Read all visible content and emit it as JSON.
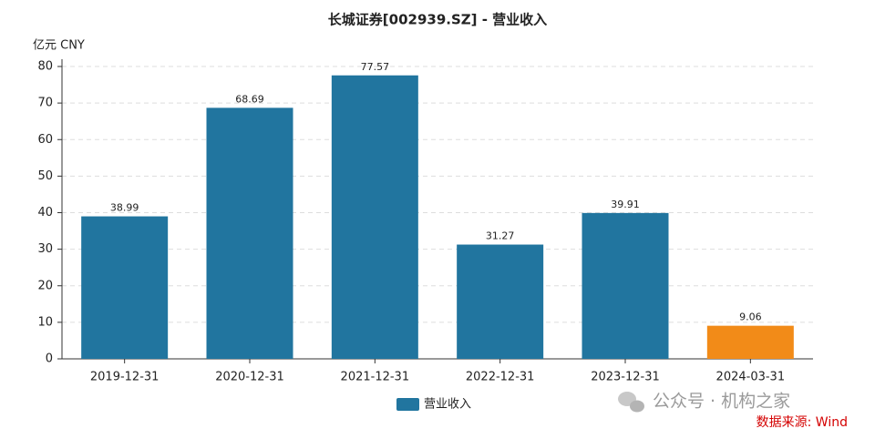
{
  "chart_data": {
    "type": "bar",
    "title": "长城证券[002939.SZ] - 营业收入",
    "y_label": "亿元  CNY",
    "categories": [
      "2019-12-31",
      "2020-12-31",
      "2021-12-31",
      "2022-12-31",
      "2023-12-31",
      "2024-03-31"
    ],
    "series": [
      {
        "name": "营业收入",
        "color": "#21759f",
        "values": [
          38.99,
          68.69,
          77.57,
          31.27,
          39.91,
          9.06
        ],
        "bar_colors": [
          "#21759f",
          "#21759f",
          "#21759f",
          "#21759f",
          "#21759f",
          "#f28b18"
        ]
      }
    ],
    "ylim": [
      0,
      80
    ],
    "yticks": [
      0,
      10,
      20,
      30,
      40,
      50,
      60,
      70,
      80
    ],
    "grid": true,
    "watermark": "公众号 · 机构之家",
    "source": "数据来源: Wind"
  }
}
